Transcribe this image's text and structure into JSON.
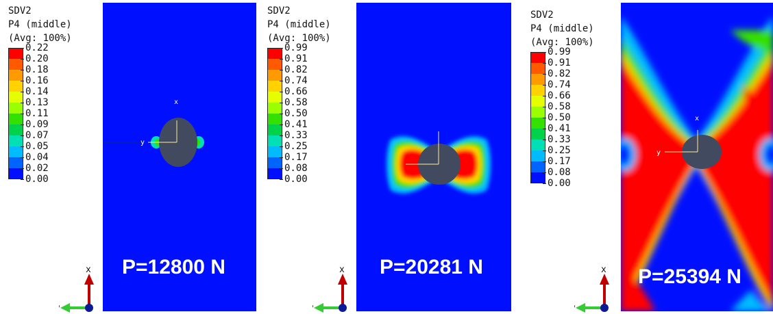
{
  "panels": [
    {
      "legend": {
        "var": "SDV2",
        "section": "P4 (middle)",
        "avg": "(Avg: 100%)",
        "ticks": [
          "0.22",
          "0.20",
          "0.18",
          "0.16",
          "0.14",
          "0.13",
          "0.11",
          "0.09",
          "0.07",
          "0.05",
          "0.04",
          "0.02",
          "0.00"
        ]
      },
      "pressure_label": "P=12800 N",
      "damage_state": "initiation"
    },
    {
      "legend": {
        "var": "SDV2",
        "section": "P4 (middle)",
        "avg": "(Avg: 100%)",
        "ticks": [
          "0.99",
          "0.91",
          "0.82",
          "0.74",
          "0.66",
          "0.58",
          "0.50",
          "0.41",
          "0.33",
          "0.25",
          "0.17",
          "0.08",
          "0.00"
        ]
      },
      "pressure_label": "P=20281 N",
      "damage_state": "bowtie"
    },
    {
      "legend": {
        "var": "SDV2",
        "section": "P4 (middle)",
        "avg": "(Avg: 100%)",
        "ticks": [
          "0.99",
          "0.91",
          "0.82",
          "0.74",
          "0.66",
          "0.58",
          "0.50",
          "0.41",
          "0.33",
          "0.25",
          "0.17",
          "0.08",
          "0.00"
        ]
      },
      "pressure_label": "P=25394 N",
      "damage_state": "full"
    }
  ],
  "colormap": [
    "#ff0000",
    "#ff5a00",
    "#ff9a00",
    "#ffd200",
    "#e6ff00",
    "#9cff00",
    "#34e000",
    "#00d24a",
    "#00e0b4",
    "#00bcff",
    "#0064ff",
    "#0010ff"
  ],
  "triad_labels": {
    "x": "x",
    "y": "y"
  }
}
